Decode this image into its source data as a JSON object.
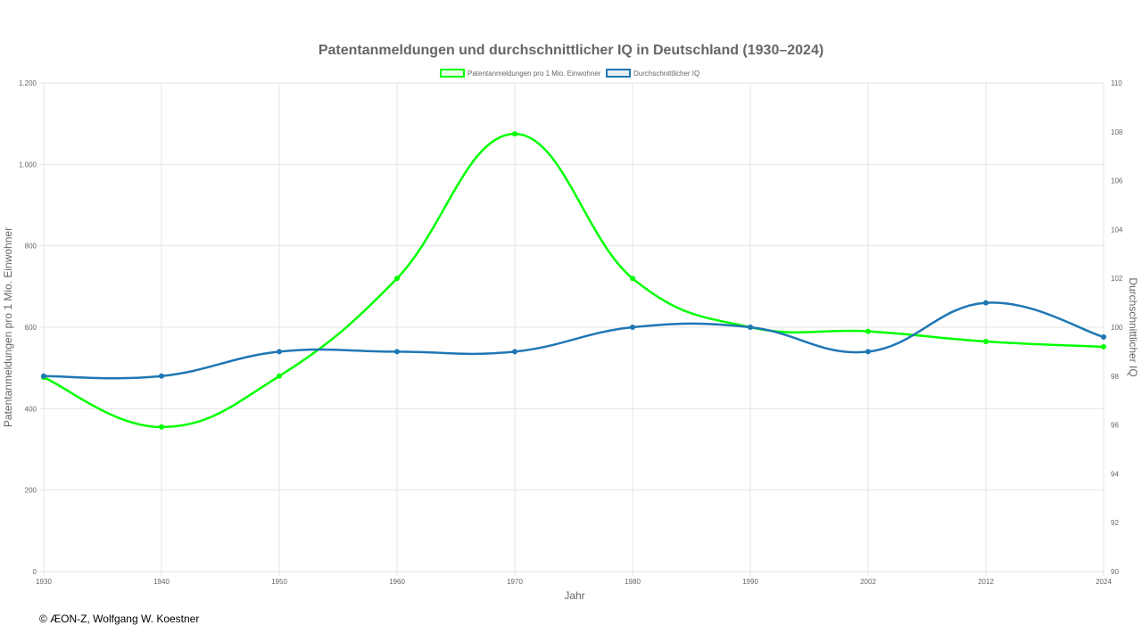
{
  "chart_data": {
    "type": "line",
    "title": "Patentanmeldungen und durchschnittlicher IQ in Deutschland (1930–2024)",
    "xlabel": "Jahr",
    "ylabel": "Patentanmeldungen pro 1 Mio. Einwohner",
    "y2label": "Durchschnittlicher IQ",
    "categories": [
      "1930",
      "1940",
      "1950",
      "1960",
      "1970",
      "1980",
      "1990",
      "2002",
      "2012",
      "2024"
    ],
    "ylim": [
      0,
      1200
    ],
    "yticks": [
      0,
      200,
      400,
      600,
      800,
      1000,
      1200
    ],
    "ytick_labels": [
      "0",
      "200",
      "400",
      "600",
      "800",
      "1.000",
      "1.200"
    ],
    "y2lim": [
      90,
      110
    ],
    "y2ticks": [
      "90",
      "92",
      "94",
      "96",
      "98",
      "100",
      "102",
      "104",
      "106",
      "108",
      "110"
    ],
    "grid": true,
    "legend_position": "top",
    "series": [
      {
        "name": "Patentanmeldungen pro 1 Mio. Einwohner",
        "axis": "left",
        "color": "#00ff00",
        "values": [
          477,
          355,
          480,
          720,
          1075,
          720,
          600,
          590,
          565,
          552
        ]
      },
      {
        "name": "Durchschnittlicher IQ",
        "axis": "right",
        "color": "#1f77b4",
        "values": [
          98,
          98,
          99,
          99,
          99,
          100,
          100,
          99,
          101,
          99.6
        ]
      }
    ]
  },
  "footer": {
    "copyright": "© ÆON-Z, Wolfgang W. Koestner"
  }
}
